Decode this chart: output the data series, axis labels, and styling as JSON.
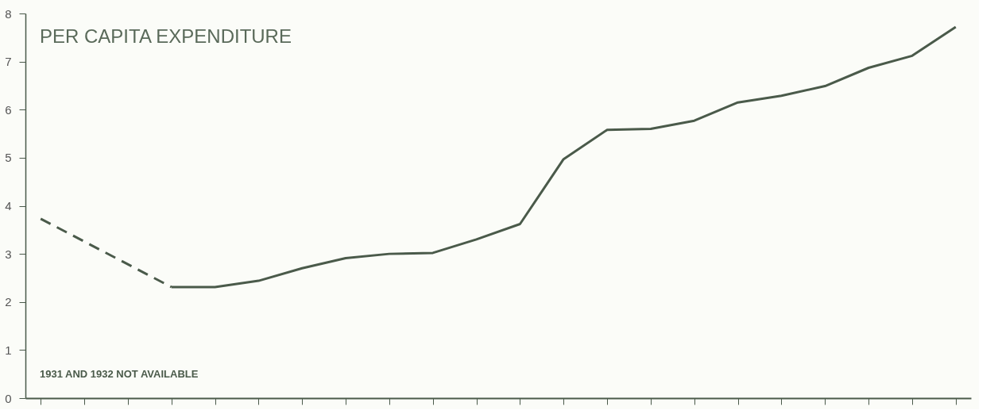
{
  "chart_data": {
    "type": "line",
    "title": "PER CAPITA EXPENDITURE",
    "categories": [
      null,
      null,
      null,
      null,
      null,
      null,
      null,
      null,
      null,
      null,
      null,
      null,
      null,
      null,
      null,
      null,
      null,
      null,
      null,
      null,
      null,
      null
    ],
    "series": [
      {
        "color": "#4a5a4a",
        "line_style": "dashed",
        "values": [
          3.73,
          null,
          null,
          2.31,
          null,
          null,
          null,
          null,
          null,
          null,
          null,
          null,
          null,
          null,
          null,
          null,
          null,
          null,
          null,
          null,
          null,
          null
        ]
      },
      {
        "color": "#4a5a4a",
        "line_style": "solid",
        "values": [
          null,
          null,
          null,
          2.31,
          2.31,
          2.44,
          2.7,
          2.91,
          3.0,
          3.02,
          3.3,
          3.62,
          4.97,
          5.58,
          5.6,
          5.77,
          6.15,
          6.29,
          6.49,
          6.87,
          7.12,
          7.72
        ]
      }
    ],
    "ylim": [
      0,
      8
    ],
    "yticks": [
      0,
      1,
      2,
      3,
      4,
      5,
      6,
      7,
      8
    ],
    "grid": false,
    "tick_labels": "y",
    "annotations": [
      "1931 AND 1932 NOT AVAILABLE"
    ]
  }
}
